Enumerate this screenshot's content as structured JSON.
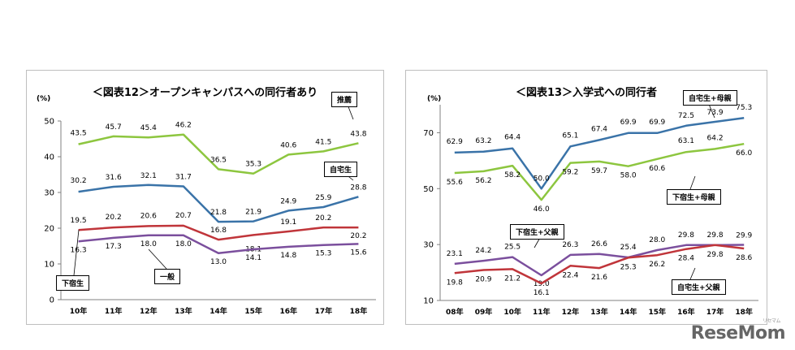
{
  "chart_data": [
    {
      "type": "line",
      "title": "＜図表12＞オープンキャンパスへの同行者あり",
      "ylabel": "(%)",
      "categories": [
        "10年",
        "11年",
        "12年",
        "13年",
        "14年",
        "15年",
        "16年",
        "17年",
        "18年"
      ],
      "ylim": [
        0,
        50
      ],
      "yticks": [
        0,
        10,
        20,
        30,
        40,
        50
      ],
      "grid": false,
      "series": [
        {
          "name": "推薦",
          "color": "#8dc63f",
          "values": [
            43.5,
            45.7,
            45.4,
            46.2,
            36.5,
            35.3,
            40.6,
            41.5,
            43.8
          ]
        },
        {
          "name": "自宅生",
          "color": "#3a73a8",
          "values": [
            30.2,
            31.6,
            32.1,
            31.7,
            21.8,
            21.9,
            24.9,
            25.9,
            28.8
          ]
        },
        {
          "name": "下宿生",
          "color": "#c0353a",
          "values": [
            19.5,
            20.2,
            20.6,
            20.7,
            16.8,
            18.1,
            19.1,
            20.2,
            20.2
          ]
        },
        {
          "name": "一般",
          "color": "#7b4f9d",
          "values": [
            16.3,
            17.3,
            18.0,
            18.0,
            13.0,
            14.1,
            14.8,
            15.3,
            15.6
          ]
        }
      ]
    },
    {
      "type": "line",
      "title": "＜図表13＞入学式への同行者",
      "ylabel": "(%)",
      "categories": [
        "08年",
        "09年",
        "10年",
        "11年",
        "12年",
        "13年",
        "14年",
        "15年",
        "16年",
        "17年",
        "18年"
      ],
      "ylim": [
        10,
        80
      ],
      "yticks": [
        10,
        30,
        50,
        70
      ],
      "grid": false,
      "series": [
        {
          "name": "自宅生+母親",
          "color": "#3a73a8",
          "values": [
            62.9,
            63.2,
            64.4,
            50.0,
            65.1,
            67.4,
            69.9,
            69.9,
            72.5,
            73.9,
            75.3
          ]
        },
        {
          "name": "下宿生+母親",
          "color": "#8dc63f",
          "values": [
            55.6,
            56.2,
            58.2,
            46.0,
            59.2,
            59.7,
            58.0,
            60.6,
            63.1,
            64.2,
            66.0
          ]
        },
        {
          "name": "下宿生+父親",
          "color": "#7b4f9d",
          "values": [
            23.1,
            24.2,
            25.5,
            19.0,
            26.3,
            26.6,
            25.4,
            28.0,
            29.8,
            29.8,
            29.9
          ]
        },
        {
          "name": "自宅生+父親",
          "color": "#c0353a",
          "values": [
            19.8,
            20.9,
            21.2,
            16.1,
            22.4,
            21.6,
            25.3,
            26.2,
            28.4,
            29.8,
            28.6
          ]
        }
      ]
    }
  ],
  "logo": {
    "text": "ReseMom",
    "small": "リセマム"
  }
}
